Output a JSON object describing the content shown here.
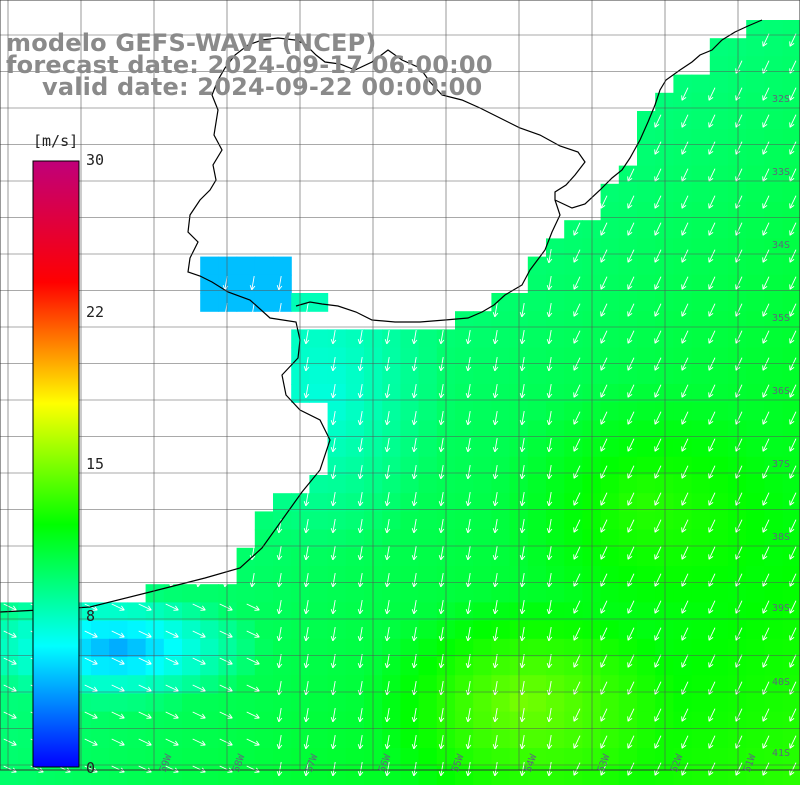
{
  "title": {
    "line1": "modelo GEFS-WAVE (NCEP)",
    "line2": "forecast date: 2024-09-17 06:00:00",
    "line3": "valid date: 2024-09-22 00:00:00"
  },
  "colorbar": {
    "unit": "[m/s]",
    "ticks": [
      "30",
      "22",
      "15",
      "8",
      "0"
    ],
    "min": 0,
    "max": 30,
    "colors": [
      "#0000ff",
      "#00ffff",
      "#00ff00",
      "#ffff00",
      "#ff0000",
      "#c0007a"
    ]
  },
  "map": {
    "lat_labels": [
      "32S",
      "33S",
      "34S",
      "35S",
      "36S",
      "37S",
      "38S",
      "39S",
      "40S",
      "41S"
    ],
    "lon_labels": [
      "59W",
      "58W",
      "57W",
      "56W",
      "55W",
      "54W",
      "53W",
      "52W",
      "51W"
    ],
    "colors": {
      "land": "#ffffff",
      "grid": "#555555",
      "coast": "#000000",
      "arrows": "#ffffff"
    }
  }
}
